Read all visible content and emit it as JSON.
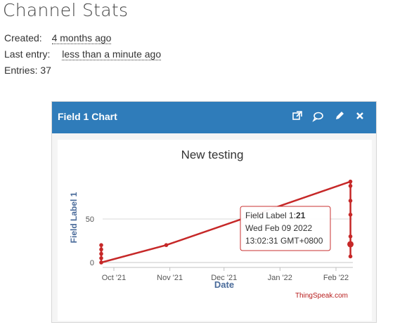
{
  "page": {
    "title": "Channel Stats"
  },
  "stats": {
    "created_label": "Created:",
    "created_value": "4 months ago",
    "last_entry_label": "Last entry:",
    "last_entry_value": "less than a minute ago",
    "entries_label": "Entries:",
    "entries_value": "37"
  },
  "panel": {
    "title": "Field 1 Chart",
    "header_color": "#2f7cba",
    "icons": [
      "external-link-icon",
      "comment-icon",
      "pencil-icon",
      "close-icon"
    ]
  },
  "chart_data": {
    "type": "line",
    "title": "New testing",
    "xlabel": "Date",
    "ylabel": "Field Label 1",
    "x_ticks": [
      "Oct '21",
      "Nov '21",
      "Dec '21",
      "Jan '22",
      "Feb '22"
    ],
    "y_ticks": [
      "0",
      "50"
    ],
    "ylim": [
      0,
      100
    ],
    "grid": true,
    "line_color": "#c62828",
    "series": [
      {
        "points": [
          {
            "x": "2021-09-24",
            "y": 20
          },
          {
            "x": "2021-09-24",
            "y": 15
          },
          {
            "x": "2021-09-24",
            "y": 10
          },
          {
            "x": "2021-09-24",
            "y": 5
          },
          {
            "x": "2021-09-24",
            "y": 0
          },
          {
            "x": "2021-10-30",
            "y": 20
          },
          {
            "x": "2022-02-09",
            "y": 93
          },
          {
            "x": "2022-02-09",
            "y": 88
          },
          {
            "x": "2022-02-09",
            "y": 71
          },
          {
            "x": "2022-02-09",
            "y": 55
          },
          {
            "x": "2022-02-09",
            "y": 30
          },
          {
            "x": "2022-02-09",
            "y": 21
          },
          {
            "x": "2022-02-09",
            "y": 7
          }
        ]
      }
    ],
    "tooltip": {
      "label": "Field Label 1:",
      "value": "21",
      "date_line": "Wed Feb 09 2022",
      "time_line": "13:02:31 GMT+0800"
    },
    "credit": "ThingSpeak.com"
  }
}
